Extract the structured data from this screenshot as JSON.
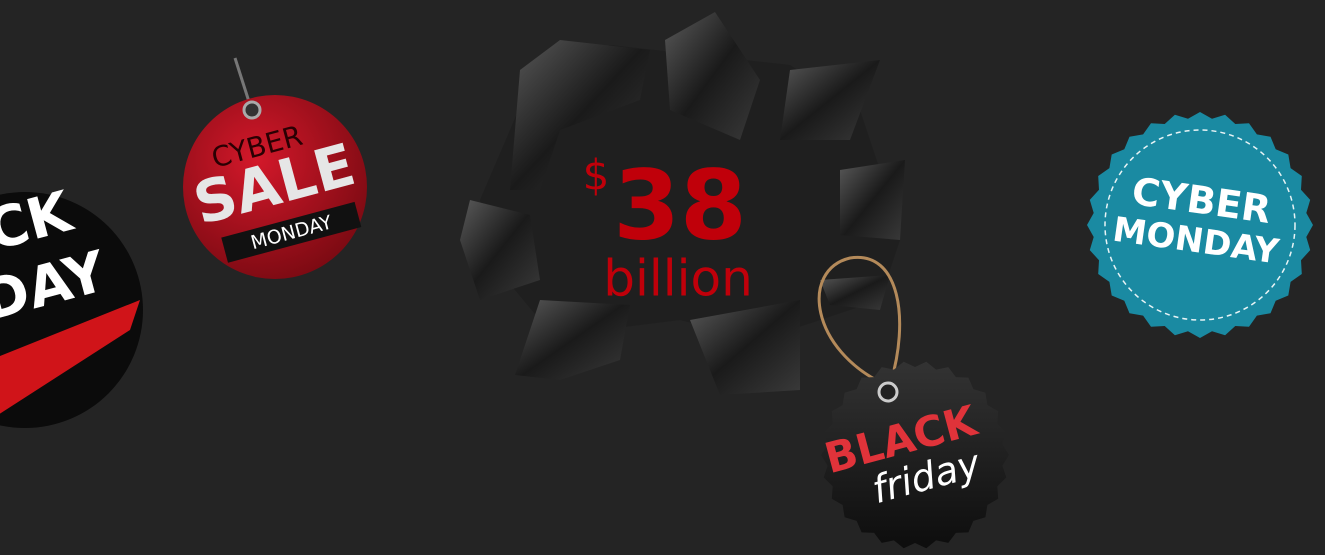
{
  "center": {
    "currency": "$",
    "amount": "38",
    "unit": "billion"
  },
  "tags": {
    "left_badge": {
      "line1": "CK",
      "line2": "DAY"
    },
    "cyber_sale": {
      "top": "CYBER",
      "middle": "SALE",
      "ribbon": "MONDAY"
    },
    "cyber_monday": {
      "line1": "CYBER",
      "line2": "MONDAY"
    },
    "black_friday": {
      "line1": "BLACK",
      "line2": "friday"
    }
  }
}
